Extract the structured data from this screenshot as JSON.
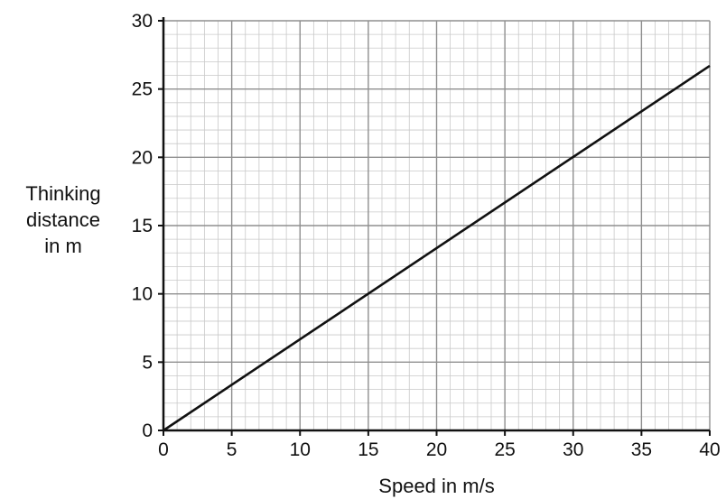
{
  "chart_data": {
    "type": "line",
    "xlabel": "Speed in m/s",
    "ylabel_lines": [
      "Thinking",
      "distance",
      "in m"
    ],
    "xlim": [
      0,
      40
    ],
    "ylim": [
      0,
      30
    ],
    "x_ticks": [
      "0",
      "5",
      "10",
      "15",
      "20",
      "25",
      "30",
      "35",
      "40"
    ],
    "y_ticks": [
      "0",
      "5",
      "10",
      "15",
      "20",
      "25",
      "30"
    ],
    "grid": true,
    "series": [
      {
        "x": [
          0,
          40
        ],
        "y": [
          0,
          26.7
        ]
      }
    ]
  }
}
